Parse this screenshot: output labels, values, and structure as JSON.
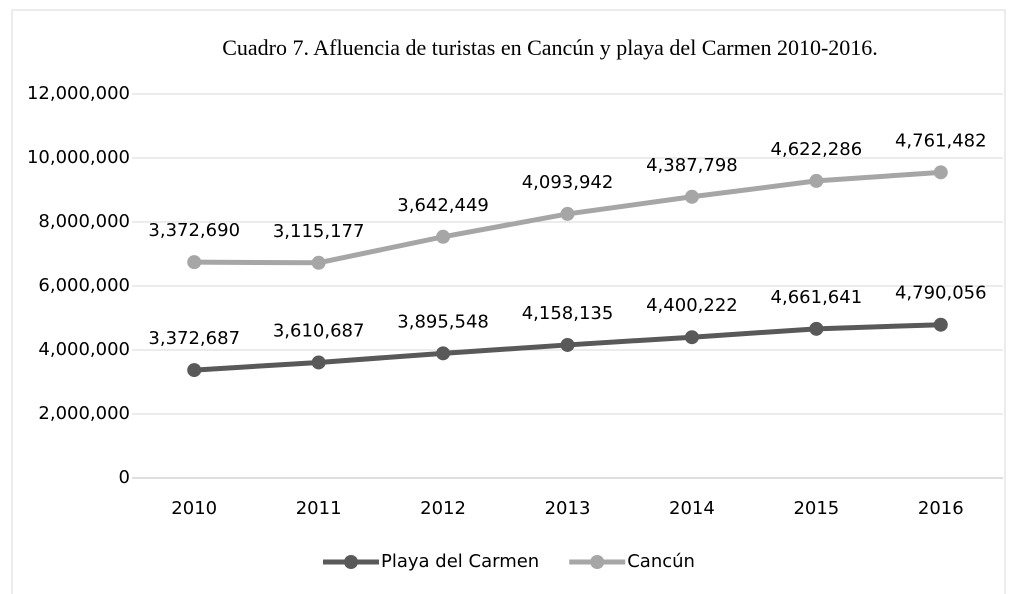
{
  "chart_data": {
    "type": "line",
    "stacked": true,
    "title": "Cuadro 7. Afluencia de turistas en Cancún y playa del Carmen 2010-2016.",
    "categories": [
      "2010",
      "2011",
      "2012",
      "2013",
      "2014",
      "2015",
      "2016"
    ],
    "series": [
      {
        "name": "Playa del Carmen",
        "color": "#595959",
        "values": [
          3372687,
          3610687,
          3895548,
          4158135,
          4400222,
          4661641,
          4790056
        ],
        "value_labels": [
          "3,372,687",
          "3,610,687",
          "3,895,548",
          "4,158,135",
          "4,400,222",
          "4,661,641",
          "4,790,056"
        ]
      },
      {
        "name": "Cancún",
        "color": "#a6a6a6",
        "values": [
          3372690,
          3115177,
          3642449,
          4093942,
          4387798,
          4622286,
          4761482
        ],
        "value_labels": [
          "3,372,690",
          "3,115,177",
          "3,642,449",
          "4,093,942",
          "4,387,798",
          "4,622,286",
          "4,761,482"
        ]
      }
    ],
    "ylim": [
      0,
      12000000
    ],
    "yticks": [
      0,
      {
        "value": 2000000,
        "label": "2,000,000"
      },
      {
        "value": 4000000,
        "label": "4,000,000"
      },
      {
        "value": 6000000,
        "label": "6,000,000"
      },
      {
        "value": 8000000,
        "label": "8,000,000"
      },
      {
        "value": 10000000,
        "label": "10,000,000"
      },
      {
        "value": 12000000,
        "label": "12,000,000"
      }
    ],
    "grid": true,
    "legend": "bottom"
  }
}
